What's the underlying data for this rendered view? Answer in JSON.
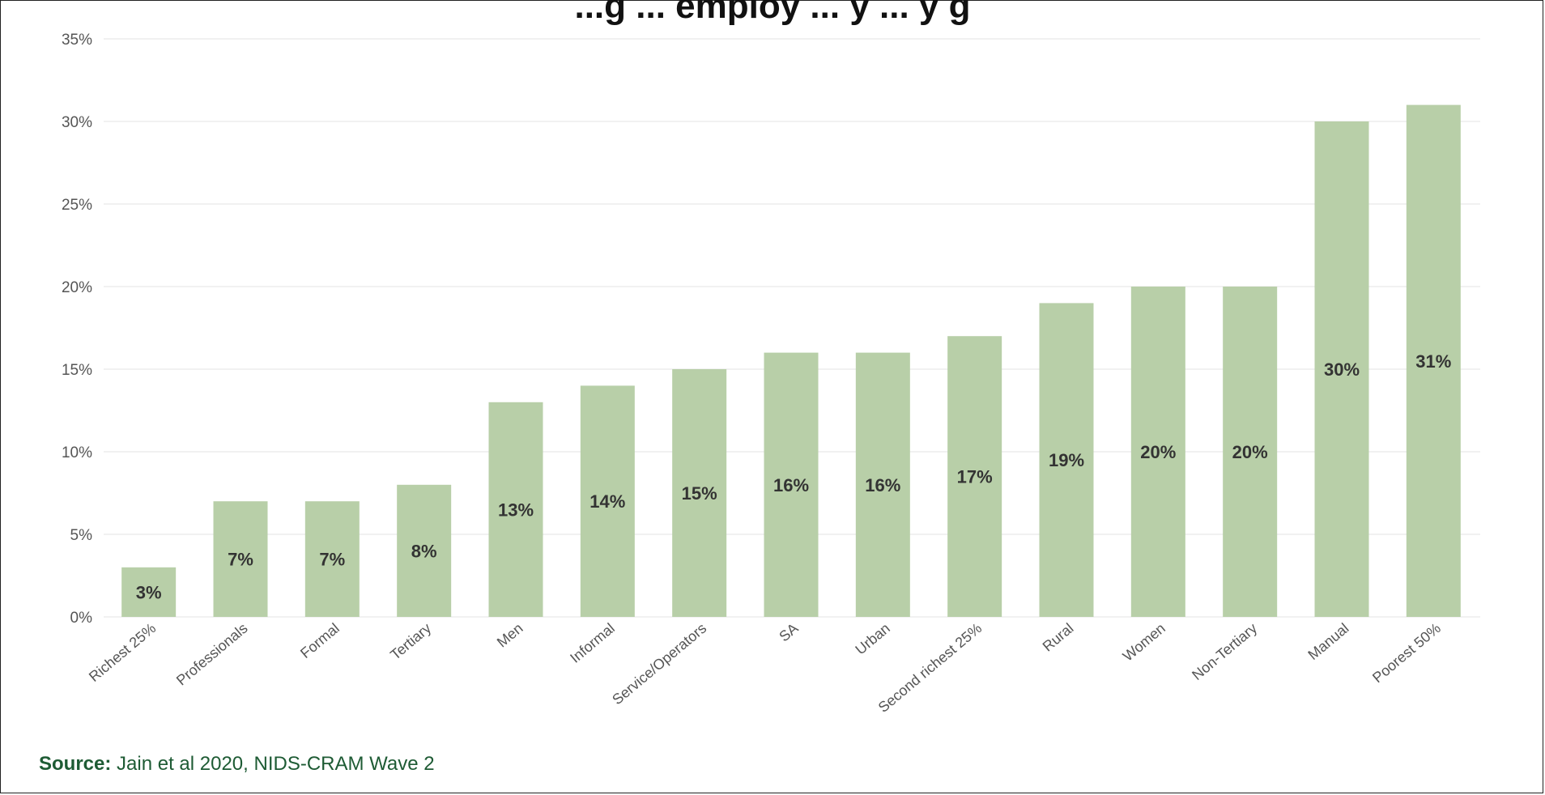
{
  "chart_data": {
    "type": "bar",
    "title": "...g ... employ ... y ... y g",
    "categories": [
      "Richest 25%",
      "Professionals",
      "Formal",
      "Tertiary",
      "Men",
      "Informal",
      "Service/Operators",
      "SA",
      "Urban",
      "Second richest 25%",
      "Rural",
      "Women",
      "Non-Tertiary",
      "Manual",
      "Poorest 50%"
    ],
    "values": [
      3,
      7,
      7,
      8,
      13,
      14,
      15,
      16,
      16,
      17,
      19,
      20,
      20,
      30,
      31
    ],
    "value_labels": [
      "3%",
      "7%",
      "7%",
      "8%",
      "13%",
      "14%",
      "15%",
      "16%",
      "16%",
      "17%",
      "19%",
      "20%",
      "20%",
      "30%",
      "31%"
    ],
    "ylim": [
      0,
      35
    ],
    "yticks": [
      0,
      5,
      10,
      15,
      20,
      25,
      30,
      35
    ],
    "ytick_labels": [
      "0%",
      "5%",
      "10%",
      "15%",
      "20%",
      "25%",
      "30%",
      "35%"
    ],
    "grid": true,
    "bar_color": "#b8cfa8",
    "grid_color": "#e3e3e3"
  },
  "source": {
    "label": "Source:",
    "text": "Jain et al 2020, NIDS-CRAM Wave 2"
  }
}
